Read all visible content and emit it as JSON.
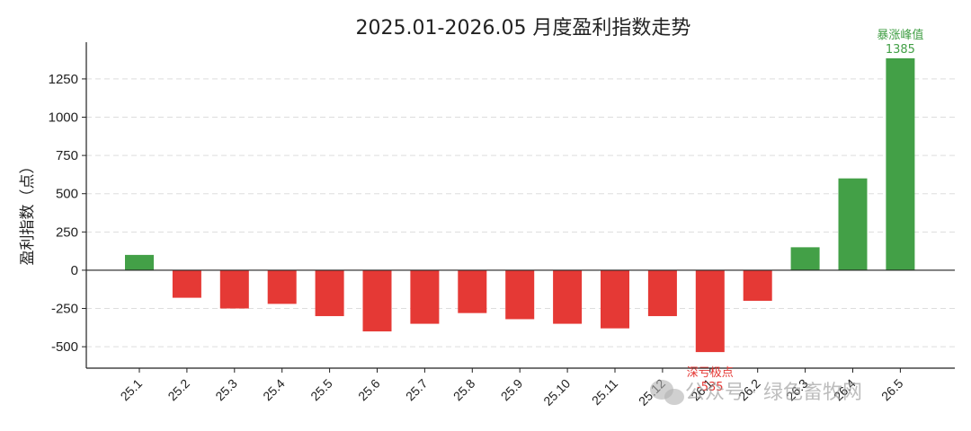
{
  "chart_data": {
    "type": "bar",
    "title": "2025.01-2026.05 月度盈利指数走势",
    "xlabel": "",
    "ylabel": "盈利指数（点）",
    "categories": [
      "25.1",
      "25.2",
      "25.3",
      "25.4",
      "25.5",
      "25.6",
      "25.7",
      "25.8",
      "25.9",
      "25.10",
      "25.11",
      "25.12",
      "26.1",
      "26.2",
      "26.3",
      "26.4",
      "26.5"
    ],
    "values": [
      100,
      -180,
      -250,
      -220,
      -300,
      -400,
      -350,
      -280,
      -320,
      -350,
      -380,
      -300,
      -535,
      -200,
      150,
      600,
      1385
    ],
    "yticks": [
      -500,
      -250,
      0,
      250,
      500,
      750,
      1000,
      1250
    ],
    "ylim": [
      -640,
      1490
    ],
    "grid": "horizontal dashed",
    "colors": {
      "positive": "#43a047",
      "negative": "#e53935",
      "grid": "#dddddd",
      "axis": "#222222"
    },
    "annotations": [
      {
        "label": "暴涨峰值",
        "value": "1385",
        "category": "26.5",
        "color": "#43a047",
        "position": "above"
      },
      {
        "label": "深亏极点",
        "value": "-535",
        "category": "26.1",
        "color": "#e53935",
        "position": "below"
      }
    ]
  },
  "watermark": "公众号 · 绿色畜牧网"
}
